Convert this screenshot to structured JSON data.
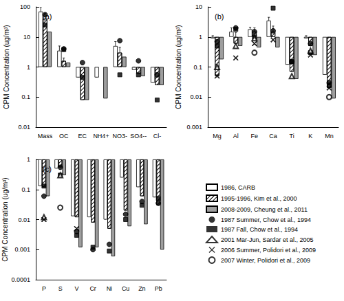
{
  "chart_data": [
    {
      "type": "bar",
      "title": "(a)",
      "ylabel": "CPM Concentration (ug/m³)",
      "log": "y",
      "grid": false,
      "categories": [
        "Mass",
        "OC",
        "EC",
        "NH4+",
        "NO3-",
        "SO4--",
        "Cl-"
      ],
      "ylim": [
        0.01,
        100
      ],
      "yticks": [
        0.01,
        0.1,
        1,
        10,
        100
      ],
      "series": [
        {
          "name": "1986, CARB",
          "type": "bar",
          "color": "#ffffff",
          "values": [
            70,
            3.5,
            0.45,
            0.45,
            5,
            0.8,
            0.3
          ],
          "errors": [
            30,
            1.5,
            0.25,
            0.15,
            2,
            0.2,
            0.15
          ]
        },
        {
          "name": "1995-1996, Kim et al., 2000",
          "type": "bar",
          "color": "#ffffff",
          "values": [
            40,
            1.6,
            0.08,
            null,
            3,
            0.6,
            0.25
          ],
          "errors": [
            20,
            0.4,
            0.07,
            null,
            1.5,
            0.15,
            0.08
          ]
        },
        {
          "name": "2008-2009, Cheung et al., 2011",
          "type": "bar",
          "color": "#9e9e9e",
          "values": [
            15,
            1.4,
            0.08,
            0.09,
            2.2,
            0.5,
            0.25
          ],
          "errors": [
            null,
            null,
            null,
            null,
            null,
            null,
            null
          ]
        },
        {
          "name": "1987 Summer, Chow et al., 1994",
          "type": "scatter",
          "marker": "circle",
          "color": "#000000",
          "values": [
            55,
            4,
            1.4,
            null,
            7.5,
            1.6,
            0.55
          ]
        },
        {
          "name": "1987 Fall, Chow et al., 1994",
          "type": "scatter",
          "marker": "square",
          "color": "#000000",
          "values": [
            25,
            3.8,
            0.45,
            null,
            0.55,
            0.55,
            0.08
          ]
        },
        {
          "name": "2001 Mar-Jun, Sardar et al., 2005",
          "type": "scatter",
          "marker": "open triangle",
          "color": "#000000",
          "values": [
            null,
            null,
            null,
            null,
            null,
            null,
            null
          ]
        },
        {
          "name": "2006 Summer, Polidori et al., 2009",
          "type": "scatter",
          "marker": "x",
          "color": "#000000",
          "values": [
            null,
            null,
            null,
            null,
            null,
            null,
            null
          ]
        },
        {
          "name": "2007 Winter, Polidori et al., 2009",
          "type": "scatter",
          "marker": "open circle",
          "color": "#000000",
          "values": [
            null,
            null,
            null,
            null,
            null,
            null,
            null
          ]
        }
      ]
    },
    {
      "type": "bar",
      "title": "(b)",
      "ylabel": "CPM Concentration (ug/m³)",
      "log": "y",
      "grid": false,
      "categories": [
        "Mg",
        "Al",
        "Fe",
        "Ca",
        "Ti",
        "K",
        "Mn"
      ],
      "ylim": [
        0.001,
        10
      ],
      "yticks": [
        0.001,
        0.01,
        0.1,
        1,
        10
      ],
      "series": [
        {
          "name": "1986, CARB",
          "type": "bar",
          "color": "#ffffff",
          "values": [
            0.9,
            1.5,
            1.8,
            3.5,
            0.12,
            0.9,
            0.055
          ],
          "errors": [
            0.2,
            0.5,
            0.3,
            1,
            0.03,
            0.2,
            0.008
          ]
        },
        {
          "name": "1995-1996, Kim et al., 2000",
          "type": "bar",
          "color": "#ffffff",
          "values": [
            0.05,
            0.6,
            1.5,
            1.5,
            0.07,
            0.5,
            0.02
          ],
          "errors": [
            0.03,
            0.8,
            0.5,
            0.8,
            0.02,
            0.15,
            0.01
          ]
        },
        {
          "name": "2008-2009, Cheung et al., 2011",
          "type": "bar",
          "color": "#9e9e9e",
          "values": [
            0.18,
            0.5,
            0.45,
            0.45,
            0.04,
            0.25,
            0.009
          ],
          "errors": [
            null,
            null,
            null,
            null,
            null,
            null,
            null
          ]
        },
        {
          "name": "1987 Summer, Chow et al., 1994",
          "type": "scatter",
          "marker": "circle",
          "color": "#000000",
          "values": [
            0.7,
            2,
            1.5,
            1.6,
            0.15,
            0.6,
            0.03
          ]
        },
        {
          "name": "1987 Fall, Chow et al., 1994",
          "type": "scatter",
          "marker": "square",
          "color": "#000000",
          "values": [
            0.5,
            1.8,
            1,
            9,
            0.15,
            0.3,
            0.025
          ]
        },
        {
          "name": "2001 Mar-Jun, Sardar et al., 2005",
          "type": "scatter",
          "marker": "open triangle",
          "color": "#000000",
          "values": [
            0.1,
            0.5,
            0.9,
            null,
            0.05,
            0.35,
            null
          ]
        },
        {
          "name": "2006 Summer, Polidori et al., 2009",
          "type": "scatter",
          "marker": "x",
          "color": "#000000",
          "values": [
            0.05,
            0.2,
            0.6,
            0.8,
            null,
            0.25,
            0.02
          ]
        },
        {
          "name": "2007 Winter, Polidori et al., 2009",
          "type": "scatter",
          "marker": "open circle",
          "color": "#000000",
          "values": [
            null,
            null,
            0.3,
            null,
            null,
            null,
            0.01
          ]
        }
      ]
    },
    {
      "type": "bar",
      "title": "(c)",
      "ylabel": "CPM Concentration (ug/m³)",
      "log": "y",
      "grid": false,
      "categories": [
        "P",
        "S",
        "V",
        "Cr",
        "Ni",
        "Cu",
        "Zn",
        "Pb"
      ],
      "ylim": [
        0.0001,
        1
      ],
      "yticks": [
        0.0001,
        0.001,
        0.01,
        0.1,
        1
      ],
      "series": [
        {
          "name": "1986, CARB",
          "type": "bar",
          "color": "#ffffff",
          "values": [
            0.13,
            0.5,
            0.013,
            0.012,
            0.01,
            0.25,
            0.12,
            0.055
          ],
          "errors": [
            0.07,
            0.1,
            0.002,
            0.002,
            0.003,
            0.03,
            0.02,
            0.005
          ]
        },
        {
          "name": "1995-1996, Kim et al., 2000",
          "type": "bar",
          "color": "#ffffff",
          "values": [
            0.12,
            0.55,
            0.012,
            0.008,
            0.005,
            0.02,
            0.06,
            0.03
          ],
          "errors": [
            0.03,
            0.1,
            0.002,
            0.004,
            0.005,
            0.02,
            0.04,
            0.02
          ]
        },
        {
          "name": "2008-2009, Cheung et al., 2011",
          "type": "bar",
          "color": "#9e9e9e",
          "values": [
            0.06,
            0.3,
            0.0012,
            0.0012,
            0.0006,
            0.006,
            0.007,
            0.001
          ],
          "errors": [
            null,
            null,
            null,
            null,
            null,
            null,
            null,
            null
          ]
        },
        {
          "name": "1987 Summer, Chow et al., 1994",
          "type": "scatter",
          "marker": "circle",
          "color": "#000000",
          "values": [
            0.06,
            0.55,
            0.004,
            0.001,
            0.0015,
            0.015,
            0.04,
            0.035
          ]
        },
        {
          "name": "1987 Fall, Chow et al., 1994",
          "type": "scatter",
          "marker": "square",
          "color": "#000000",
          "values": [
            0.13,
            0.3,
            0.003,
            0.0012,
            0.0009,
            0.01,
            0.03,
            0.05
          ]
        },
        {
          "name": "2001 Mar-Jun, Sardar et al., 2005",
          "type": "scatter",
          "marker": "open triangle",
          "color": "#000000",
          "values": [
            0.012,
            0.3,
            null,
            null,
            null,
            null,
            null,
            null
          ]
        },
        {
          "name": "2006 Summer, Polidori et al., 2009",
          "type": "scatter",
          "marker": "x",
          "color": "#000000",
          "values": [
            0.01,
            null,
            0.005,
            null,
            null,
            null,
            null,
            null
          ]
        },
        {
          "name": "2007 Winter, Polidori et al., 2009",
          "type": "scatter",
          "marker": "open circle",
          "color": "#000000",
          "values": [
            null,
            0.025,
            null,
            null,
            null,
            null,
            null,
            null
          ]
        }
      ]
    }
  ]
}
